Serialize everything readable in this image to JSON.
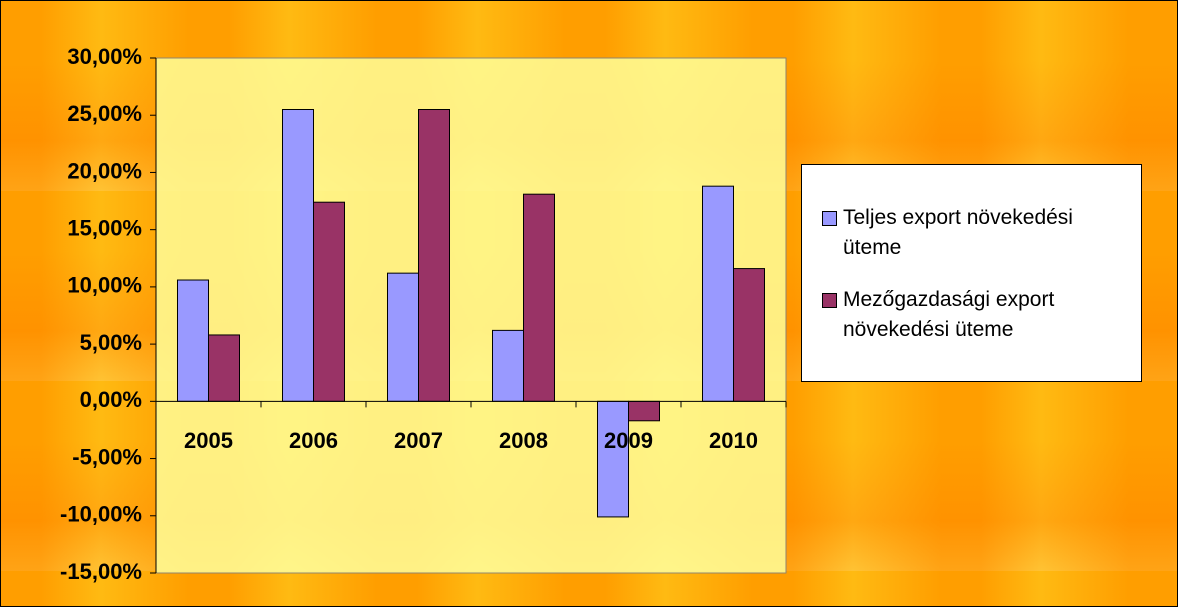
{
  "chart_data": {
    "type": "bar",
    "categories": [
      "2005",
      "2006",
      "2007",
      "2008",
      "2009",
      "2010"
    ],
    "series": [
      {
        "name": "Teljes export növekedési üteme",
        "color": "#9999ff",
        "values": [
          10.6,
          25.5,
          11.2,
          6.2,
          -10.1,
          18.8
        ]
      },
      {
        "name": "Mezőgazdasági export növekedési üteme",
        "color": "#993366",
        "values": [
          5.8,
          17.4,
          25.5,
          18.1,
          -1.7,
          11.6
        ]
      }
    ],
    "ylim": [
      -15,
      30
    ],
    "yticks": [
      {
        "value": 30,
        "label": "30,00%"
      },
      {
        "value": 25,
        "label": "25,00%"
      },
      {
        "value": 20,
        "label": "20,00%"
      },
      {
        "value": 15,
        "label": "15,00%"
      },
      {
        "value": 10,
        "label": "10,00%"
      },
      {
        "value": 5,
        "label": "5,00%"
      },
      {
        "value": 0,
        "label": "0,00%"
      },
      {
        "value": -5,
        "label": "-5,00%"
      },
      {
        "value": -10,
        "label": "-10,00%"
      },
      {
        "value": -15,
        "label": "-15,00%"
      }
    ],
    "legend": "right"
  }
}
